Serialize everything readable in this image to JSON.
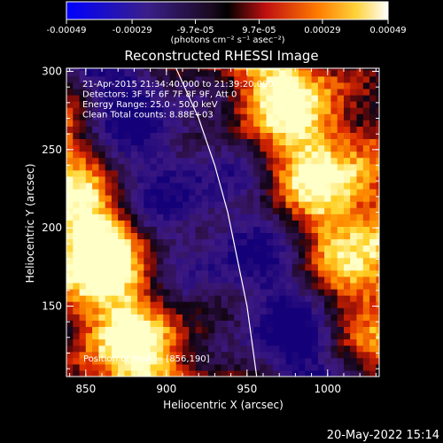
{
  "chart_data": {
    "type": "heatmap",
    "title": "Reconstructed RHESSI Image",
    "xlabel": "Heliocentric X (arcsec)",
    "ylabel": "Heliocentric Y (arcsec)",
    "xlim": [
      838,
      1032
    ],
    "ylim": [
      105,
      302
    ],
    "x_ticks": [
      850,
      900,
      950,
      1000
    ],
    "y_ticks": [
      150,
      200,
      250,
      300
    ],
    "colorbar": {
      "ticks": [
        "-0.00049",
        "-0.00029",
        "-9.7e-05",
        "9.7e-05",
        "0.00029",
        "0.00049"
      ],
      "tick_values": [
        -0.00049,
        -0.00029,
        -9.7e-05,
        9.7e-05,
        0.00029,
        0.00049
      ],
      "range": [
        -0.00049,
        0.00049
      ],
      "units_label": "(photons cm⁻² s⁻¹ asec⁻²)"
    },
    "annotations": [
      "21-Apr-2015 21:34:40.000 to 21:39:20.000",
      "Detectors: 3F 5F 6F 7F 8F 9F, Att 0",
      "Energy Range: 25.0 - 50.0 keV",
      "Clean     Total counts: 8.88E+03"
    ],
    "peak_label": "Position of Peak = [856,190]",
    "peak": [
      856,
      190
    ],
    "limb_curve": [
      [
        906,
        302
      ],
      [
        920,
        270
      ],
      [
        930,
        240
      ],
      [
        938,
        210
      ],
      [
        944,
        180
      ],
      [
        950,
        150
      ],
      [
        954,
        120
      ],
      [
        956,
        105
      ]
    ]
  },
  "footer": {
    "timestamp": "20-May-2022 15:14"
  },
  "colors": {
    "background": "#000000",
    "axis": "#ffffff",
    "limb": "#ffffff"
  }
}
